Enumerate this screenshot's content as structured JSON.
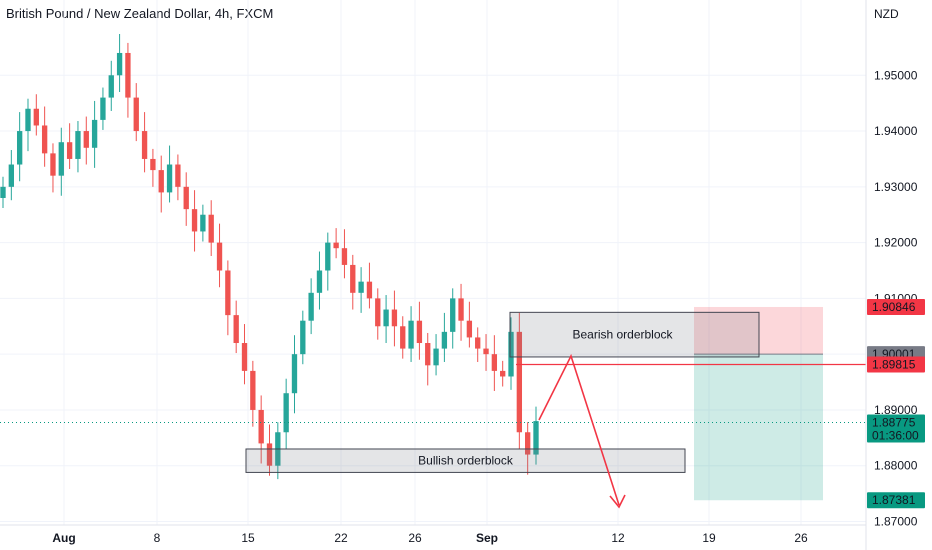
{
  "header": {
    "title": "British Pound / New Zealand Dollar, 4h, FXCM",
    "currency": "NZD"
  },
  "colors": {
    "up": "#26a69a",
    "down": "#ef5350",
    "stop": "#f23645",
    "target": "#089981",
    "entry": "#787b86"
  },
  "chart_data": {
    "type": "candlestick",
    "title": "British Pound / New Zealand Dollar, 4h, FXCM",
    "ylabel": "NZD",
    "ylim": [
      1.87,
      1.96
    ],
    "yticks": [
      "1.95000",
      "1.94000",
      "1.93000",
      "1.92000",
      "1.91000",
      "1.90000",
      "1.89000",
      "1.88000",
      "1.87000"
    ],
    "xticks": [
      "Aug",
      "8",
      "15",
      "22",
      "26",
      "Sep",
      "12",
      "19",
      "26"
    ],
    "price_tags": [
      {
        "label": "1.90846",
        "value": 1.90846,
        "color": "#f23645"
      },
      {
        "label": "1.90001",
        "value": 1.90001,
        "color": "#787b86"
      },
      {
        "label": "1.89815",
        "value": 1.89815,
        "color": "#f23645"
      },
      {
        "label": "1.88775",
        "value": 1.88775,
        "color": "#089981",
        "countdown": "01:36:00"
      },
      {
        "label": "1.87381",
        "value": 1.87381,
        "color": "#089981"
      }
    ],
    "annotations": [
      {
        "label": "Bearish orderblock",
        "high": 1.9075,
        "low": 1.8995
      },
      {
        "label": "Bullish orderblock",
        "high": 1.883,
        "low": 1.8788
      }
    ],
    "position": {
      "entry": 1.90001,
      "stop": 1.90846,
      "target": 1.87381
    },
    "horizontal_line": 1.89815,
    "last_price": 1.88775,
    "close": [
      1.93,
      1.934,
      1.94,
      1.944,
      1.941,
      1.936,
      1.932,
      1.938,
      1.935,
      1.94,
      1.937,
      1.942,
      1.946,
      1.95,
      1.954,
      1.946,
      1.94,
      1.935,
      1.933,
      1.929,
      1.934,
      1.93,
      1.926,
      1.922,
      1.925,
      1.92,
      1.915,
      1.907,
      1.902,
      1.897,
      1.89,
      1.884,
      1.88,
      1.886,
      1.893,
      1.9,
      1.906,
      1.911,
      1.915,
      1.92,
      1.919,
      1.916,
      1.911,
      1.913,
      1.91,
      1.905,
      1.908,
      1.905,
      1.901,
      1.906,
      1.902,
      1.898,
      1.901,
      1.904,
      1.91,
      1.906,
      1.903,
      1.901,
      1.9,
      1.897,
      1.896,
      1.904,
      1.886,
      1.882,
      1.888
    ]
  }
}
